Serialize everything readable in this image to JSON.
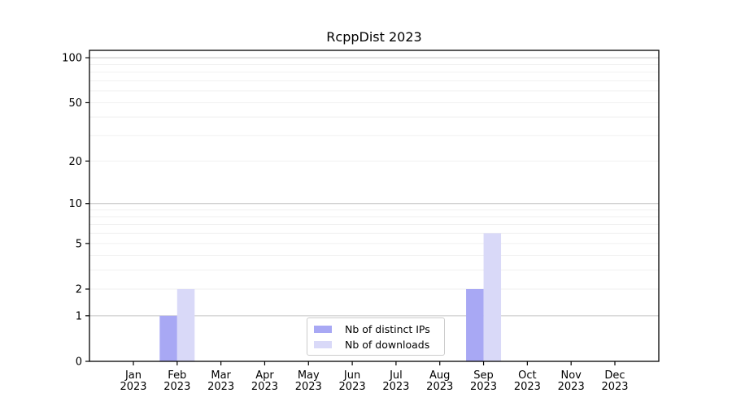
{
  "chart_data": {
    "type": "bar",
    "title": "RcppDist 2023",
    "x_months": [
      "Jan",
      "Feb",
      "Mar",
      "Apr",
      "May",
      "Jun",
      "Jul",
      "Aug",
      "Sep",
      "Oct",
      "Nov",
      "Dec"
    ],
    "x_year": "2023",
    "series": [
      {
        "name": "Nb of distinct IPs",
        "color": "#a8a8f4",
        "values": [
          0,
          1,
          0,
          0,
          0,
          0,
          0,
          0,
          2,
          0,
          0,
          0
        ]
      },
      {
        "name": "Nb of downloads",
        "color": "#d9d9f8",
        "values": [
          0,
          2,
          0,
          0,
          0,
          0,
          0,
          0,
          6,
          0,
          0,
          0
        ]
      }
    ],
    "y_ticks": [
      0,
      1,
      2,
      5,
      10,
      20,
      50,
      100
    ],
    "y_scale": "log1p",
    "ylim": [
      0,
      112
    ],
    "major_gridlines": [
      1,
      10,
      100
    ],
    "minor_gridlines": [
      2,
      3,
      4,
      5,
      6,
      7,
      8,
      9,
      20,
      30,
      40,
      50,
      60,
      70,
      80,
      90
    ],
    "grid": true,
    "legend_position": "lower center",
    "colors": {
      "major_grid": "#c3c3c3",
      "minor_grid": "#efefef",
      "axis": "#000000",
      "text": "#000000",
      "background": "#ffffff",
      "legend_border": "#cccccc"
    }
  }
}
